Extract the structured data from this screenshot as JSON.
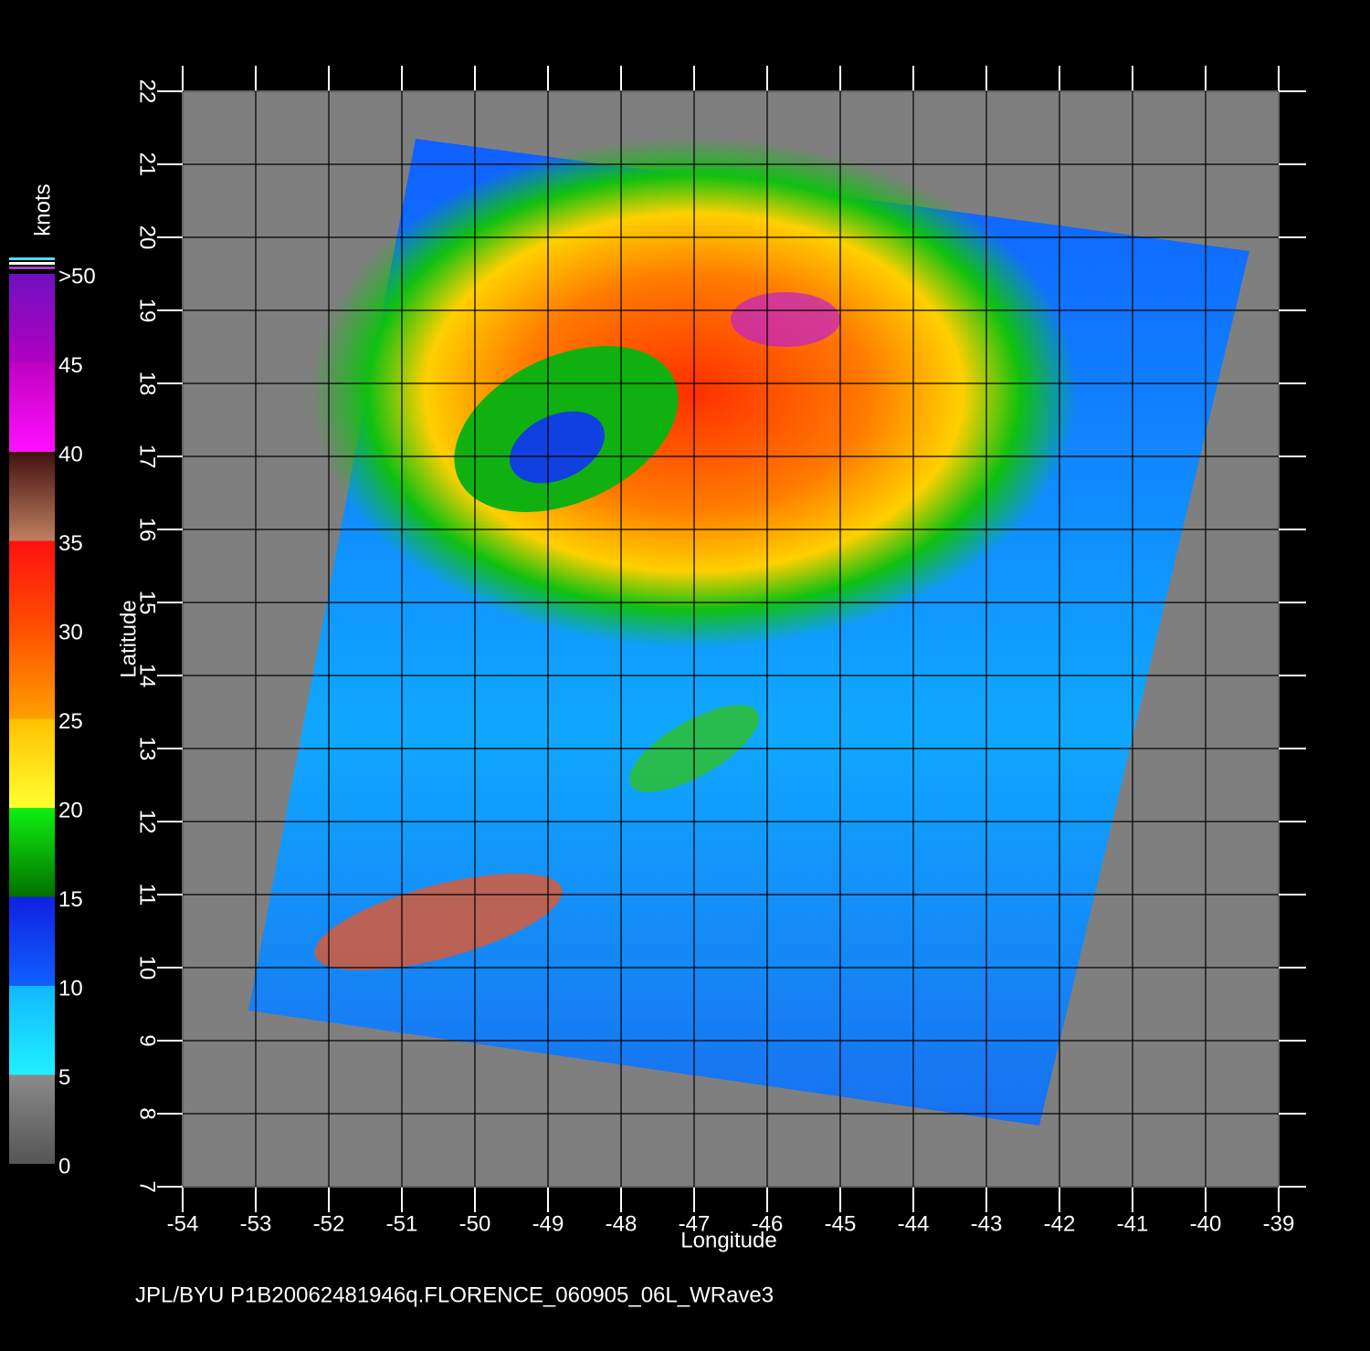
{
  "axes": {
    "x_label": "Longitude",
    "y_label": "Latitude",
    "xlim": [
      -54,
      -39
    ],
    "ylim": [
      7,
      22
    ],
    "xticks": [
      -54,
      -53,
      -52,
      -51,
      -50,
      -49,
      -48,
      -47,
      -46,
      -45,
      -44,
      -43,
      -42,
      -41,
      -40,
      -39
    ],
    "yticks": [
      7,
      8,
      9,
      10,
      11,
      12,
      13,
      14,
      15,
      16,
      17,
      18,
      19,
      20,
      21,
      22
    ]
  },
  "colorbar": {
    "title": "knots",
    "ticks": [
      0,
      5,
      10,
      15,
      20,
      25,
      30,
      35,
      40,
      45,
      {
        "value": 50,
        "label": ">50"
      }
    ]
  },
  "footer": "JPL/BYU  P1B20062481946q.FLORENCE_060905_06L_WRave3"
}
